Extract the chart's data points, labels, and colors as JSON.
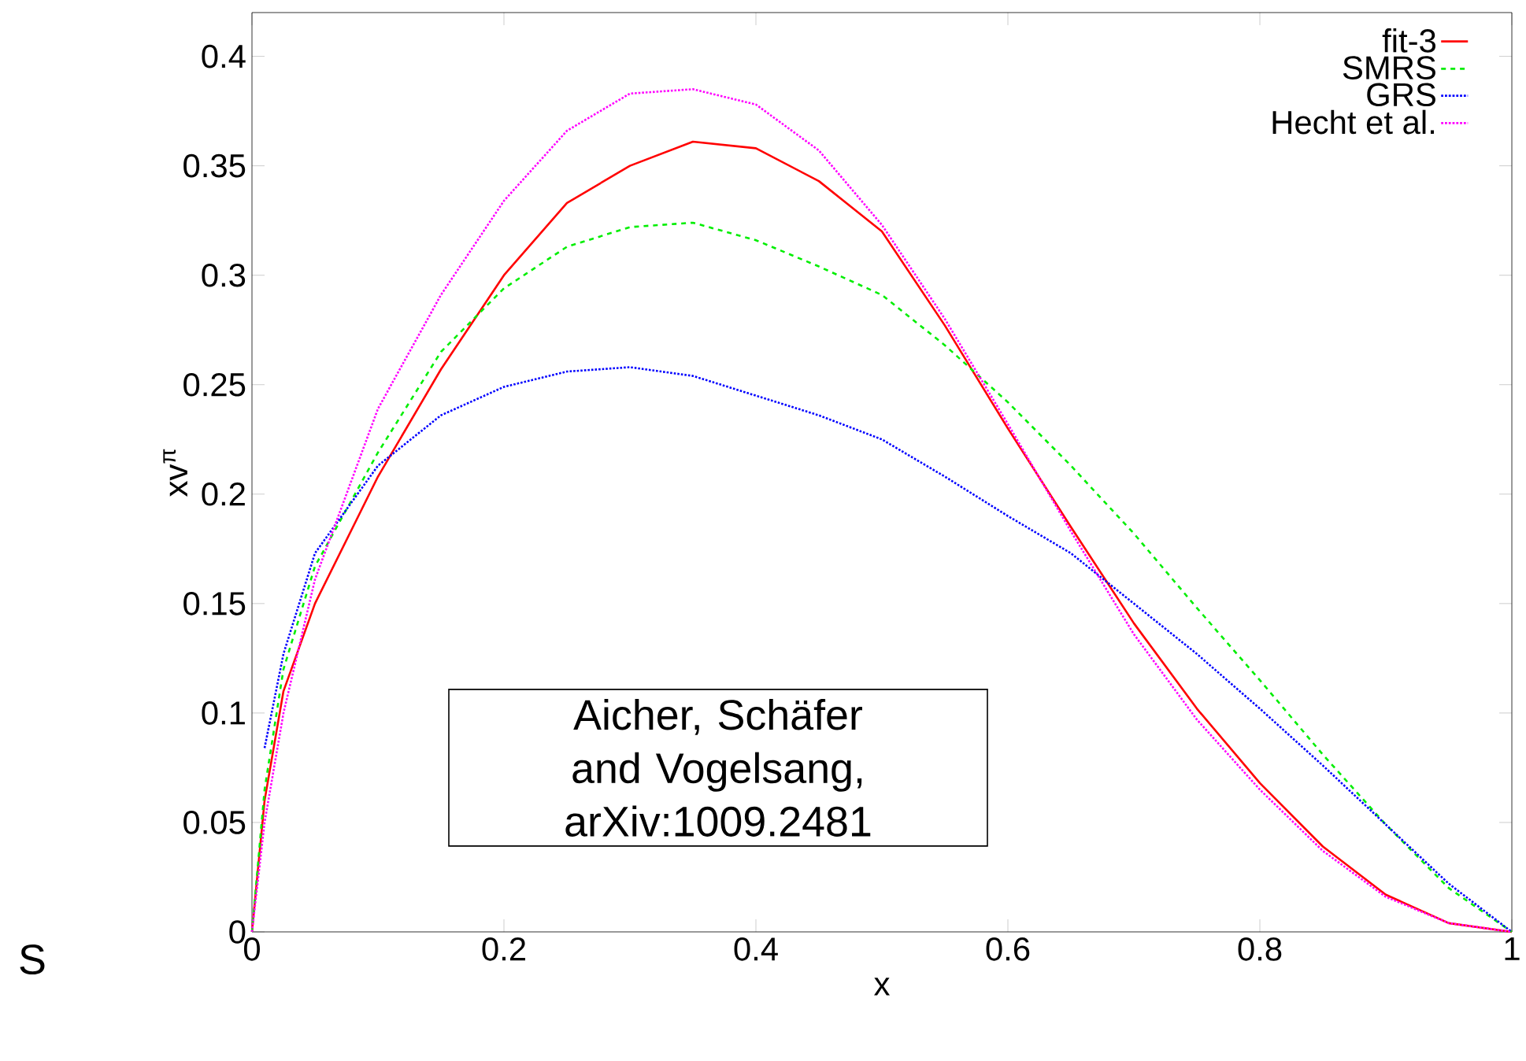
{
  "chart_data": {
    "type": "line",
    "xlabel": "x",
    "ylabel": "xv$^{π}$",
    "x": [
      0,
      0.01,
      0.025,
      0.05,
      0.1,
      0.15,
      0.2,
      0.25,
      0.3,
      0.35,
      0.4,
      0.45,
      0.5,
      0.55,
      0.6,
      0.65,
      0.7,
      0.75,
      0.8,
      0.85,
      0.9,
      0.95,
      1
    ],
    "series": [
      {
        "name": "fit-3",
        "color": "#ff0000",
        "line_style": "solid",
        "values": [
          0,
          0.06,
          0.11,
          0.15,
          0.208,
          0.257,
          0.3,
          0.333,
          0.35,
          0.361,
          0.358,
          0.343,
          0.32,
          0.277,
          0.23,
          0.185,
          0.141,
          0.102,
          0.068,
          0.039,
          0.017,
          0.004,
          0
        ]
      },
      {
        "name": "SMRS",
        "color": "#00ee00",
        "line_style": "dashed",
        "values": [
          0,
          0.065,
          0.12,
          0.167,
          0.219,
          0.265,
          0.294,
          0.313,
          0.322,
          0.324,
          0.316,
          0.304,
          0.291,
          0.268,
          0.242,
          0.213,
          0.182,
          0.148,
          0.115,
          0.081,
          0.049,
          0.02,
          0
        ]
      },
      {
        "name": "GRS",
        "color": "#0000ff",
        "line_style": "dotted",
        "x": [
          0.01,
          0.025,
          0.05,
          0.1,
          0.15,
          0.2,
          0.25,
          0.3,
          0.35,
          0.4,
          0.45,
          0.5,
          0.55,
          0.6,
          0.65,
          0.7,
          0.75,
          0.8,
          0.85,
          0.9,
          0.95,
          1
        ],
        "values": [
          0.084,
          0.127,
          0.173,
          0.213,
          0.236,
          0.249,
          0.256,
          0.258,
          0.254,
          0.245,
          0.236,
          0.225,
          0.208,
          0.19,
          0.173,
          0.15,
          0.127,
          0.102,
          0.076,
          0.049,
          0.022,
          0
        ]
      },
      {
        "name": "Hecht et al.",
        "color": "#ff00ff",
        "line_style": "dotted",
        "values": [
          0,
          0.05,
          0.1,
          0.161,
          0.239,
          0.291,
          0.334,
          0.366,
          0.383,
          0.385,
          0.378,
          0.357,
          0.323,
          0.28,
          0.232,
          0.183,
          0.136,
          0.097,
          0.065,
          0.037,
          0.016,
          0.004,
          0
        ]
      }
    ],
    "xlim": [
      0,
      1
    ],
    "ylim": [
      0,
      0.42
    ],
    "xticks": [
      0,
      0.2,
      0.4,
      0.6,
      0.8,
      1
    ],
    "yticks": [
      0,
      0.05,
      0.1,
      0.15,
      0.2,
      0.25,
      0.3,
      0.35,
      0.4
    ],
    "legend": "top right",
    "grid": false,
    "marker": "none",
    "annotations": [
      "Aicher, Schäfer and Vogelsang, arXiv:1009.2481",
      "S"
    ]
  }
}
